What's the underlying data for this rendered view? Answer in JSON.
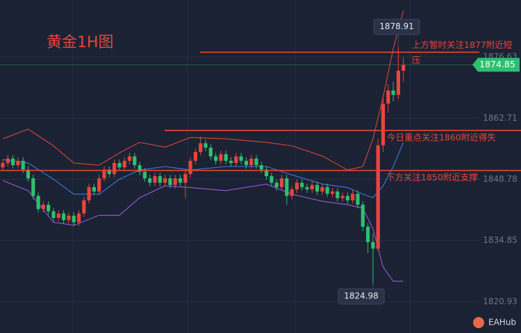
{
  "chart_data": {
    "type": "candlestick",
    "title": "黄金1H图",
    "ylim": [
      1813.8,
      1889.6
    ],
    "yticks": [
      1876.63,
      1862.71,
      1848.78,
      1834.85,
      1820.93
    ],
    "grid": true,
    "up_color": "#e8453c",
    "down_color": "#2fbf71",
    "open": [
      1851.5,
      1852.5,
      1853.5,
      1852,
      1853,
      1851,
      1849,
      1845,
      1842,
      1843,
      1841.5,
      1840,
      1841,
      1839.5,
      1840.5,
      1839,
      1841,
      1844,
      1847,
      1846,
      1849,
      1851,
      1850,
      1852.5,
      1851.5,
      1853,
      1854,
      1852,
      1850.5,
      1849,
      1848,
      1849.5,
      1848,
      1849,
      1847.5,
      1849,
      1848,
      1850,
      1853,
      1855,
      1857,
      1856,
      1854,
      1853,
      1854.5,
      1853,
      1852.5,
      1854,
      1853,
      1852,
      1853.5,
      1852,
      1851,
      1849.5,
      1848,
      1847,
      1849,
      1845,
      1846.5,
      1848,
      1847,
      1846.5,
      1847.5,
      1846,
      1847,
      1845.5,
      1846,
      1844.5,
      1845,
      1844,
      1845.5,
      1843,
      1838,
      1834.5,
      1833,
      1856.5,
      1866,
      1869,
      1868,
      1873.5
    ],
    "high": [
      1853.3,
      1854.3,
      1854.3,
      1853.8,
      1853.8,
      1851.8,
      1849.8,
      1845.8,
      1843.8,
      1843.8,
      1842.3,
      1841.8,
      1841.8,
      1841.3,
      1841.3,
      1841.8,
      1844.8,
      1847.8,
      1847.8,
      1849.8,
      1851.8,
      1851.8,
      1853.3,
      1853.3,
      1853.8,
      1854.8,
      1854.8,
      1852.8,
      1851.3,
      1849.8,
      1850.3,
      1850.3,
      1849.8,
      1849.8,
      1849.8,
      1849.8,
      1850.8,
      1853.8,
      1855.8,
      1858.5,
      1857.8,
      1856.8,
      1854.8,
      1855.3,
      1855.3,
      1853.8,
      1854.8,
      1854.8,
      1853.8,
      1854.3,
      1854.3,
      1852.8,
      1851.8,
      1850.3,
      1848.8,
      1849.8,
      1849.8,
      1847.3,
      1848.8,
      1848.8,
      1847.8,
      1848.3,
      1848.3,
      1847.8,
      1847.8,
      1846.8,
      1846.8,
      1845.8,
      1845.8,
      1846.3,
      1846.3,
      1843.8,
      1838.8,
      1836.5,
      1858,
      1868,
      1870.5,
      1871,
      1878.91,
      1876.5
    ],
    "low": [
      1850.7,
      1851.7,
      1851.2,
      1851.2,
      1850.2,
      1848.2,
      1844.2,
      1841.2,
      1841.2,
      1840.7,
      1839.2,
      1839.2,
      1838.7,
      1838.7,
      1838.2,
      1838.2,
      1840.2,
      1843.2,
      1845.2,
      1845.2,
      1848.2,
      1849.2,
      1849.2,
      1850.7,
      1850.7,
      1852.2,
      1851.2,
      1849.7,
      1848.2,
      1847.2,
      1847.2,
      1847.2,
      1847.2,
      1846.7,
      1846.7,
      1847.2,
      1844.5,
      1849.2,
      1852.2,
      1854.2,
      1855.2,
      1853.2,
      1852.2,
      1852.2,
      1852.2,
      1851.7,
      1851.7,
      1852.2,
      1851.2,
      1851.2,
      1851.2,
      1850.2,
      1848.7,
      1847.2,
      1846.2,
      1846.2,
      1843,
      1844.2,
      1845.7,
      1846.2,
      1845.7,
      1845.7,
      1845.2,
      1845.2,
      1844.7,
      1844.7,
      1843.7,
      1843.7,
      1843.2,
      1843.2,
      1842.2,
      1837,
      1832,
      1824.98,
      1832.5,
      1855,
      1864,
      1866.5,
      1867,
      1871
    ],
    "close": [
      1852.5,
      1853.5,
      1852,
      1853,
      1851,
      1849,
      1845,
      1842,
      1843,
      1841.5,
      1840,
      1841,
      1839.5,
      1840.5,
      1839,
      1841,
      1844,
      1847,
      1846,
      1849,
      1851,
      1850,
      1852.5,
      1851.5,
      1853,
      1854,
      1852,
      1850.5,
      1849,
      1848,
      1849.5,
      1848,
      1849,
      1847.5,
      1849,
      1848,
      1850,
      1853,
      1855,
      1857,
      1856,
      1854,
      1853,
      1854.5,
      1853,
      1852.5,
      1854,
      1853,
      1852,
      1853.5,
      1852,
      1851,
      1849.5,
      1848,
      1847,
      1849,
      1845,
      1846.5,
      1848,
      1847,
      1846.5,
      1847.5,
      1846,
      1847,
      1845.5,
      1846,
      1844.5,
      1845,
      1844,
      1845.5,
      1843,
      1838,
      1834.5,
      1833,
      1856.5,
      1866,
      1869,
      1868,
      1873.5,
      1874.85
    ],
    "bands": [
      {
        "color": "#d9463a",
        "x": [
          0,
          5,
          10,
          14,
          19,
          23,
          27,
          32,
          37,
          44,
          52,
          57,
          63,
          68,
          71,
          73,
          75,
          77,
          79
        ],
        "values": [
          1858.0,
          1860.2,
          1856.4,
          1852.5,
          1852.0,
          1854.8,
          1857.2,
          1856.1,
          1858.3,
          1858.0,
          1857.2,
          1856.4,
          1854.1,
          1850.9,
          1851.7,
          1858.0,
          1867.5,
          1878.5,
          1887.2
        ]
      },
      {
        "color": "#3f7be0",
        "x": [
          0,
          5,
          10,
          14,
          19,
          23,
          27,
          32,
          37,
          44,
          52,
          57,
          63,
          68,
          71,
          73,
          75,
          77,
          79
        ],
        "values": [
          1853.3,
          1852.5,
          1848.8,
          1845.4,
          1845.4,
          1848.8,
          1850.9,
          1851.7,
          1850.9,
          1851.7,
          1851.7,
          1849.8,
          1847.7,
          1846.9,
          1845.4,
          1844.6,
          1847.3,
          1851.7,
          1857.2
        ]
      },
      {
        "color": "#9a5ae0",
        "x": [
          0,
          5,
          10,
          14,
          19,
          23,
          27,
          32,
          37,
          44,
          52,
          57,
          63,
          68,
          71,
          73,
          75,
          77,
          79
        ],
        "values": [
          1848.5,
          1846.2,
          1839.0,
          1838.3,
          1840.6,
          1840.6,
          1844.6,
          1847.3,
          1846.9,
          1846.2,
          1847.7,
          1845.4,
          1843.8,
          1843.0,
          1842.2,
          1837.5,
          1828.8,
          1825.6,
          1825.6
        ]
      }
    ],
    "annotations": [
      {
        "lines": [
          "上方暂时关注1877附近短",
          "压"
        ],
        "level": 1877.7,
        "color": "#e8453c"
      },
      {
        "lines": [
          "今日重点关注1860附近得失"
        ],
        "level": 1859.9,
        "color": "#e8453c"
      },
      {
        "lines": [
          "下方关注1850附近支撑"
        ],
        "level": 1850.8,
        "color": "#e8453c"
      }
    ],
    "price_labels": [
      {
        "value": 1878.91
      },
      {
        "value": 1824.98
      }
    ],
    "last_price": 1874.85,
    "last_price_color": "#2fbf71",
    "logo": "EAHub"
  }
}
